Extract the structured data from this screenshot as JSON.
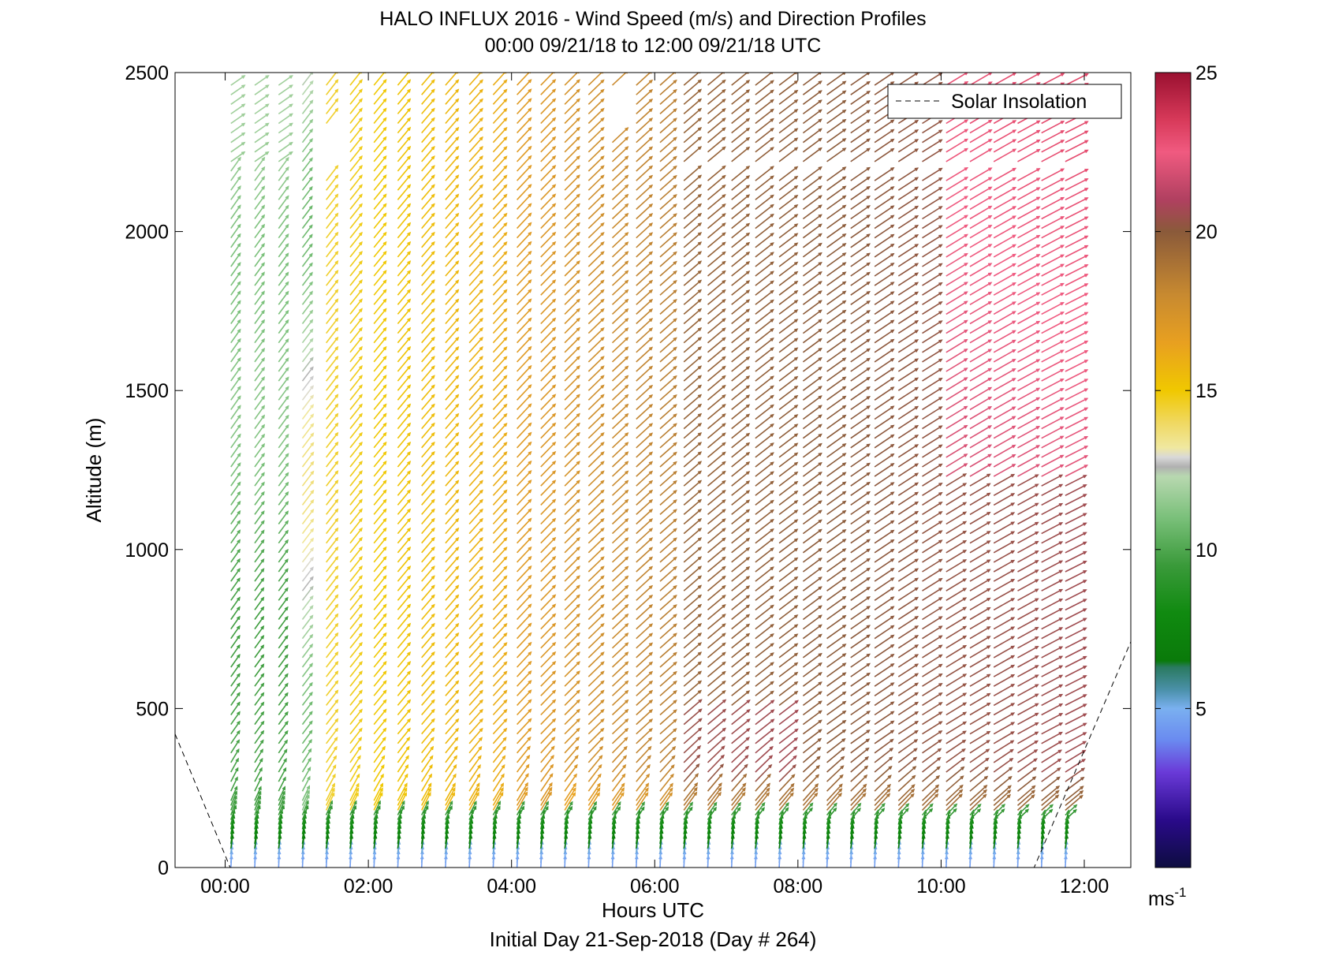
{
  "chart_data": {
    "type": "quiver",
    "title": "HALO INFLUX 2016 - Wind Speed (m/s) and Direction Profiles",
    "subtitle": "00:00 09/21/18 to 12:00 09/21/18  UTC",
    "xlabel": "Hours UTC",
    "ylabel": "Altitude (m)",
    "footer": "Initial Day 21-Sep-2018 (Day # 264)",
    "xlim": [
      -0.7,
      12.65
    ],
    "ylim": [
      0,
      2500
    ],
    "x_ticks": [
      0,
      2,
      4,
      6,
      8,
      10,
      12
    ],
    "x_tick_labels": [
      "00:00",
      "02:00",
      "04:00",
      "06:00",
      "08:00",
      "10:00",
      "12:00"
    ],
    "y_ticks": [
      0,
      500,
      1000,
      1500,
      2000,
      2500
    ],
    "y_tick_labels": [
      "0",
      "500",
      "1000",
      "1500",
      "2000",
      "2500"
    ],
    "legend": {
      "position": "top-right",
      "entries": [
        {
          "label": "Solar Insolation",
          "style": "dashed",
          "color": "#000000"
        }
      ]
    },
    "solar_insolation": {
      "x": [
        -0.7,
        0.07,
        11.3,
        12.65
      ],
      "y": [
        420,
        0,
        0,
        710
      ]
    },
    "colorbar": {
      "label": "ms",
      "label_superscript": "-1",
      "min": 0,
      "max": 25,
      "ticks": [
        5,
        10,
        15,
        20,
        25
      ],
      "tick_labels": [
        "5",
        "10",
        "15",
        "20",
        "25"
      ],
      "stops": [
        {
          "v": 0,
          "color": "#0d0d40"
        },
        {
          "v": 1.5,
          "color": "#2a0a8a"
        },
        {
          "v": 3,
          "color": "#6a3ad8"
        },
        {
          "v": 4,
          "color": "#6a8af0"
        },
        {
          "v": 5,
          "color": "#7ab0f0"
        },
        {
          "v": 5.6,
          "color": "#4a90a8"
        },
        {
          "v": 6.3,
          "color": "#2a7a60"
        },
        {
          "v": 6.5,
          "color": "#0a7a0a"
        },
        {
          "v": 8,
          "color": "#108a10"
        },
        {
          "v": 9.5,
          "color": "#3a9a3a"
        },
        {
          "v": 11,
          "color": "#7ac07a"
        },
        {
          "v": 12.3,
          "color": "#b8d8b0"
        },
        {
          "v": 12.6,
          "color": "#b0b0b0"
        },
        {
          "v": 12.9,
          "color": "#d8d8d8"
        },
        {
          "v": 13.2,
          "color": "#f0e8a0"
        },
        {
          "v": 14,
          "color": "#f0d860"
        },
        {
          "v": 15,
          "color": "#f0c800"
        },
        {
          "v": 16.5,
          "color": "#e8a020"
        },
        {
          "v": 18,
          "color": "#c88a30"
        },
        {
          "v": 20,
          "color": "#8a5a3a"
        },
        {
          "v": 21,
          "color": "#b04060"
        },
        {
          "v": 22.5,
          "color": "#f05a80"
        },
        {
          "v": 23.5,
          "color": "#d83a5a"
        },
        {
          "v": 25,
          "color": "#9a1030"
        }
      ]
    },
    "vectors": {
      "time_start": 0.08,
      "time_end": 11.75,
      "time_step": 0.333,
      "alt_start": 0,
      "alt_end": 2480,
      "alt_step": 30,
      "gaps": [
        {
          "t0": 5.25,
          "t1": 5.6,
          "a0": 2310,
          "a1": 2440
        },
        {
          "t0": 1.3,
          "t1": 1.7,
          "a0": 2190,
          "a1": 2330
        },
        {
          "t0": 6.1,
          "t1": 11.8,
          "a0": 2170,
          "a1": 2200
        }
      ],
      "speed_model": "approximate speed field: ~5 m/s at surface, ~10 m/s near 100 m, 9-12 m/s west of 00:50, 14-16 m/s 01:00-04:00, 17-19 m/s 04:00-06:30, 20-21 m/s after 06:30, 22-23 m/s above 1300 m after 10:30"
    }
  }
}
